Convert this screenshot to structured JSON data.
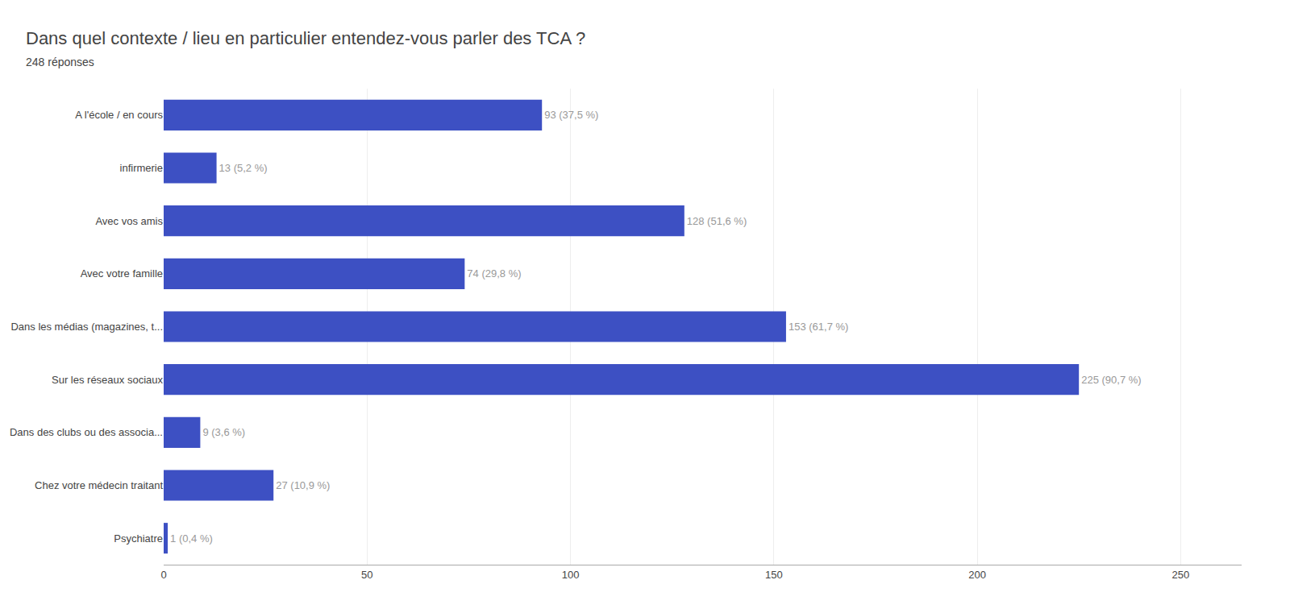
{
  "chart_data": {
    "type": "bar",
    "orientation": "horizontal",
    "title": "Dans quel contexte / lieu en particulier entendez-vous parler des TCA ?",
    "subtitle": "248 réponses",
    "categories": [
      "A l'école / en cours",
      "infirmerie",
      "Avec vos amis",
      "Avec votre famille",
      "Dans les médias (magazines, t...",
      "Sur les réseaux sociaux",
      "Dans des clubs ou des associa...",
      "Chez votre médecin traitant",
      "Psychiatre"
    ],
    "values": [
      93,
      13,
      128,
      74,
      153,
      225,
      9,
      27,
      1
    ],
    "value_labels": [
      "93 (37,5 %)",
      "13 (5,2 %)",
      "128 (51,6 %)",
      "74 (29,8 %)",
      "153 (61,7 %)",
      "225 (90,7 %)",
      "9 (3,6 %)",
      "27 (10,9 %)",
      "1 (0,4 %)"
    ],
    "color": "#3d50c3",
    "xlim": [
      0,
      265
    ],
    "xticks": [
      0,
      50,
      100,
      150,
      200,
      250
    ],
    "grid": true,
    "data_labels": true
  }
}
